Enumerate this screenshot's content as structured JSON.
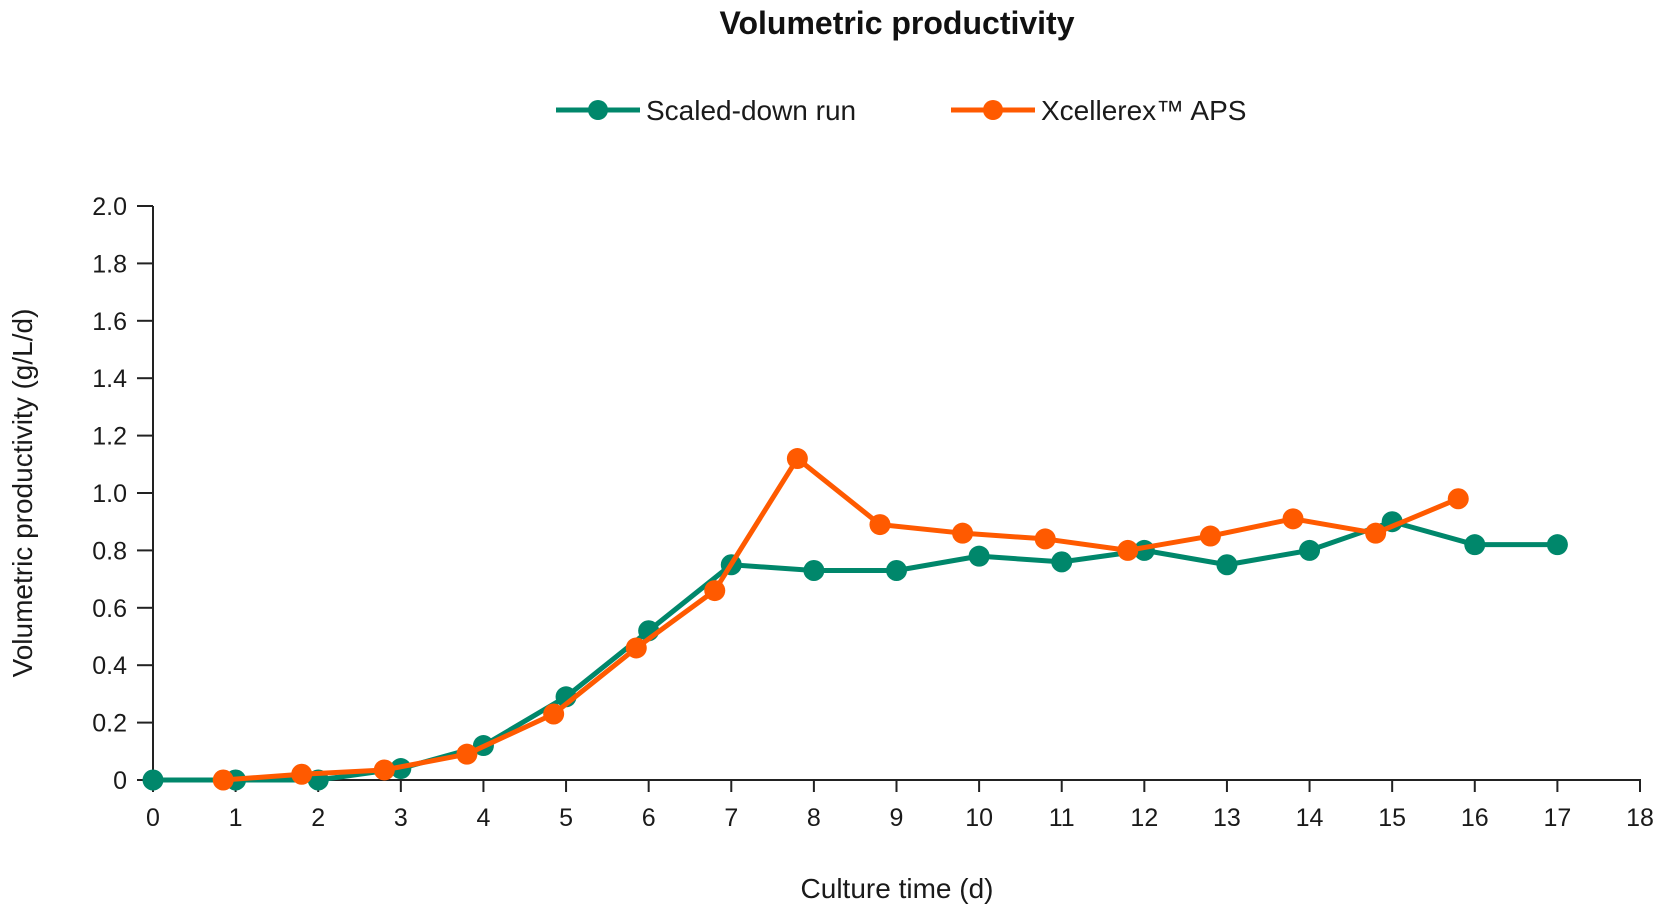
{
  "chart_data": {
    "type": "line",
    "title": "Volumetric productivity",
    "xlabel": "Culture time (d)",
    "ylabel": "Volumetric productivity (g/L/d)",
    "xlim": [
      0,
      18
    ],
    "ylim": [
      0,
      2.0
    ],
    "x_ticks": [
      0,
      1,
      2,
      3,
      4,
      5,
      6,
      7,
      8,
      9,
      10,
      11,
      12,
      13,
      14,
      15,
      16,
      17,
      18
    ],
    "x_tick_labels": [
      "0",
      "1",
      "2",
      "3",
      "4",
      "5",
      "6",
      "7",
      "8",
      "9",
      "10",
      "11",
      "12",
      "13",
      "14",
      "15",
      "16",
      "17",
      "18"
    ],
    "y_ticks": [
      0,
      0.2,
      0.4,
      0.6,
      0.8,
      1.0,
      1.2,
      1.4,
      1.6,
      1.8,
      2.0
    ],
    "y_tick_labels": [
      "0",
      "0.2",
      "0.4",
      "0.6",
      "0.8",
      "1.0",
      "1.2",
      "1.4",
      "1.6",
      "1.8",
      "2.0"
    ],
    "grid": false,
    "legend_position": "top-center",
    "series": [
      {
        "name": "Scaled-down run",
        "color": "#00876B",
        "x": [
          0,
          1,
          2,
          3,
          4,
          5,
          6,
          7,
          8,
          9,
          10,
          11,
          12,
          13,
          14,
          15,
          16,
          17
        ],
        "y": [
          0,
          0,
          0,
          0.04,
          0.12,
          0.29,
          0.52,
          0.75,
          0.73,
          0.73,
          0.78,
          0.76,
          0.8,
          0.75,
          0.8,
          0.9,
          0.82,
          0.82
        ]
      },
      {
        "name": "Xcellerex™ APS",
        "color": "#FF5A00",
        "x": [
          0.85,
          1.8,
          2.8,
          3.8,
          4.85,
          5.85,
          6.8,
          7.8,
          8.8,
          9.8,
          10.8,
          11.8,
          12.8,
          13.8,
          14.8,
          15.8
        ],
        "y": [
          0,
          0.02,
          0.035,
          0.09,
          0.23,
          0.46,
          0.66,
          1.12,
          0.89,
          0.86,
          0.84,
          0.8,
          0.85,
          0.91,
          0.86,
          0.98
        ]
      }
    ]
  }
}
